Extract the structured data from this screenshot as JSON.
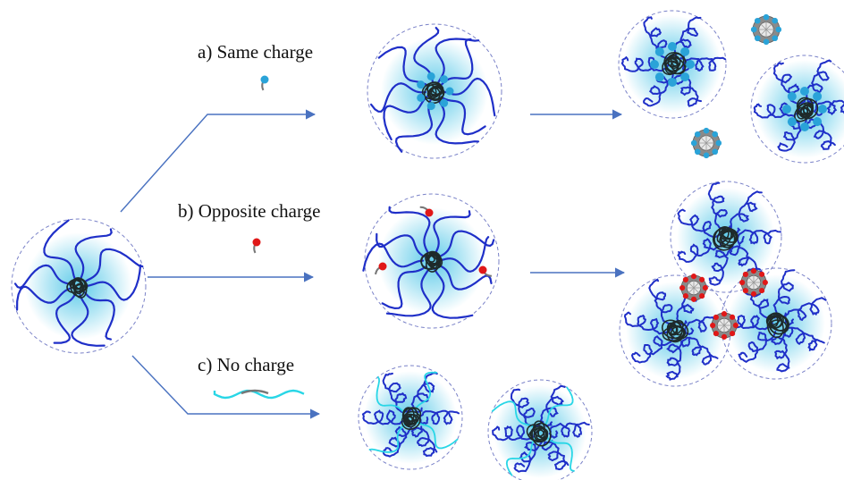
{
  "labels": {
    "same_charge": "a) Same charge",
    "opposite_charge": "b) Opposite charge",
    "no_charge": "c) No charge"
  },
  "colors": {
    "arm": "#1f2fc8",
    "core": "#1e2a2a",
    "halo": "#56c8e8",
    "boundary": "#7a82c8",
    "arrow": "#4a72c0",
    "surfactant_same": "#2aa3d8",
    "surfactant_opposite": "#e01818",
    "tail": "#777777",
    "neutral_chain": "#28d6e6",
    "complex_grey": "#8a8a8a"
  },
  "icons": [
    "same-charge-surfactant-icon",
    "opposite-charge-surfactant-icon",
    "neutral-polymer-icon",
    "star-polymer-micelle-icon",
    "surfactant-complex-icon"
  ]
}
